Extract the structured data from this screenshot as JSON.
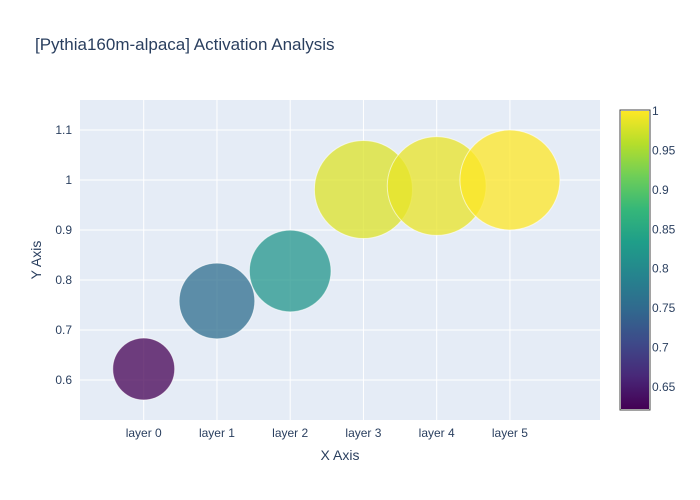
{
  "chart_data": {
    "type": "scatter",
    "title": "[Pythia160m-alpaca] Activation Analysis",
    "xlabel": "X Axis",
    "ylabel": "Y Axis",
    "categories": [
      "layer 0",
      "layer 1",
      "layer 2",
      "layer 3",
      "layer 4",
      "layer 5"
    ],
    "values": [
      0.622,
      0.758,
      0.818,
      0.981,
      0.988,
      1.0
    ],
    "marker_size_values": [
      0.622,
      0.758,
      0.818,
      0.981,
      0.988,
      1.0
    ],
    "ylim": [
      0.52,
      1.16
    ],
    "yticks": [
      0.6,
      0.7,
      0.8,
      0.9,
      1,
      1.1
    ],
    "ytick_labels": [
      "0.6",
      "0.7",
      "0.8",
      "0.9",
      "1",
      "1.1"
    ],
    "grid": true,
    "marker_opacity": 0.75,
    "colorscale": "viridis",
    "colorbar": {
      "range": [
        0.622,
        1.0
      ],
      "ticks": [
        0.65,
        0.7,
        0.75,
        0.8,
        0.85,
        0.9,
        0.95,
        1
      ],
      "tick_labels": [
        "0.65",
        "0.7",
        "0.75",
        "0.8",
        "0.85",
        "0.9",
        "0.95",
        "1"
      ]
    },
    "colors": {
      "plot_background": "#e5ecf6",
      "grid": "#ffffff",
      "text": "#2a3f5f"
    }
  }
}
